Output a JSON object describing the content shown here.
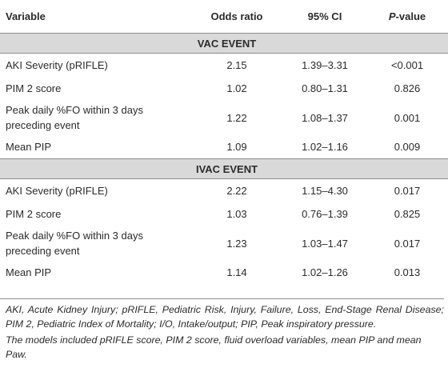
{
  "headers": {
    "variable": "Variable",
    "odds_ratio": "Odds ratio",
    "ci": "95% CI",
    "pvalue_prefix": "P",
    "pvalue_suffix": "-value"
  },
  "sections": [
    {
      "title": "VAC EVENT",
      "rows": [
        {
          "variable": "AKI Severity (pRIFLE)",
          "odds_ratio": "2.15",
          "ci": "1.39–3.31",
          "p": "<0.001"
        },
        {
          "variable": "PIM 2 score",
          "odds_ratio": "1.02",
          "ci": "0.80–1.31",
          "p": "0.826"
        },
        {
          "variable_line1": "Peak daily %FO within 3 days",
          "variable_line2": "preceding event",
          "odds_ratio": "1.22",
          "ci": "1.08–1.37",
          "p": "0.001"
        },
        {
          "variable": "Mean PIP",
          "odds_ratio": "1.09",
          "ci": "1.02–1.16",
          "p": "0.009"
        }
      ]
    },
    {
      "title": "IVAC EVENT",
      "rows": [
        {
          "variable": "AKI Severity (pRIFLE)",
          "odds_ratio": "2.22",
          "ci": "1.15–4.30",
          "p": "0.017"
        },
        {
          "variable": "PIM 2 score",
          "odds_ratio": "1.03",
          "ci": "0.76–1.39",
          "p": "0.825"
        },
        {
          "variable_line1": "Peak daily %FO within 3 days",
          "variable_line2": "preceding event",
          "odds_ratio": "1.23",
          "ci": "1.03–1.47",
          "p": "0.017"
        },
        {
          "variable": "Mean PIP",
          "odds_ratio": "1.14",
          "ci": "1.02–1.26",
          "p": "0.013"
        }
      ]
    }
  ],
  "footnotes": {
    "abbreviations": "AKI, Acute Kidney Injury; pRIFLE, Pediatric Risk, Injury, Failure, Loss, End-Stage Renal Disease; PIM 2, Pediatric Index of Mortality; I/O, Intake/output; PIP, Peak inspiratory pressure.",
    "models": "The models included pRIFLE score, PIM 2 score, fluid overload variables, mean PIP and mean Paw."
  }
}
